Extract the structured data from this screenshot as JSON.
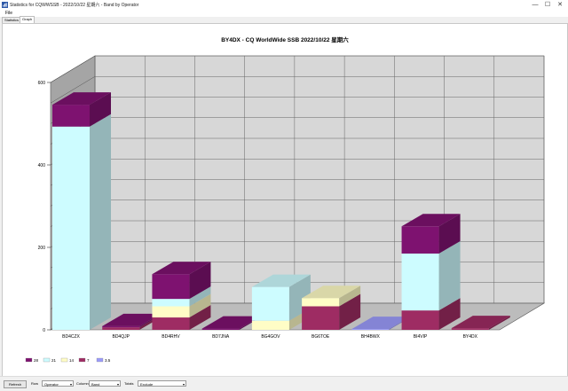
{
  "window": {
    "title": "Statistics for CQWWSSB - 2022/10/22 星期六 - Band by Operator",
    "controls": [
      "—",
      "☐",
      "✕"
    ]
  },
  "menu": {
    "file": "File"
  },
  "tabs": [
    {
      "label": "Statistics",
      "active": false
    },
    {
      "label": "Graph",
      "active": true
    }
  ],
  "colors": {
    "band_28": "#7e1270",
    "band_21": "#cdfcff",
    "band_14": "#fffdc6",
    "band_7": "#9e2c63",
    "band_3_5": "#9b9bfa",
    "wall_back": "#d7d7d7",
    "wall_side": "#a5a5a5",
    "floor": "#bcbcbc"
  },
  "chart_data": {
    "type": "bar",
    "stacked": true,
    "three_d": true,
    "title": "BY4DX - CQ WorldWide SSB 2022/10/22 星期六",
    "categories": [
      "BD4CZX",
      "BD4QJP",
      "BD4RHV",
      "BD7JNA",
      "BG4GOV",
      "BG6TOE",
      "BH4BWX",
      "BI4VIP",
      "BY4DX"
    ],
    "series": [
      {
        "name": "3.5",
        "values": [
          0,
          0,
          0,
          0,
          0,
          0,
          2,
          0,
          0
        ]
      },
      {
        "name": "7",
        "values": [
          0,
          6,
          30,
          0,
          0,
          57,
          0,
          47,
          4
        ]
      },
      {
        "name": "14",
        "values": [
          0,
          0,
          27,
          0,
          22,
          20,
          0,
          0,
          0
        ]
      },
      {
        "name": "21",
        "values": [
          493,
          0,
          18,
          0,
          82,
          0,
          0,
          138,
          0
        ]
      },
      {
        "name": "28",
        "values": [
          53,
          3,
          60,
          3,
          0,
          0,
          0,
          66,
          0
        ]
      }
    ],
    "ylim": [
      0,
      600
    ],
    "yticks": [
      0,
      200,
      400,
      600
    ],
    "grid": true,
    "legend_position": "bottom-left"
  },
  "bottom": {
    "refresh": "Refresh",
    "row_label": "Row",
    "row_value": "Operator",
    "column_label": "Column",
    "column_value": "Band",
    "totals_label": "Totals",
    "totals_value": "Exclude"
  }
}
